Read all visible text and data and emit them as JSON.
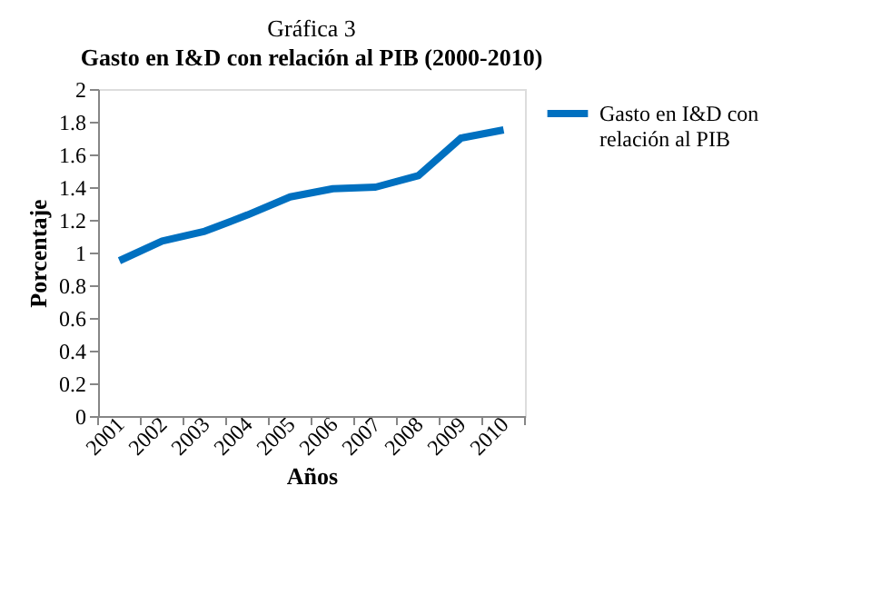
{
  "chart_data": {
    "type": "line",
    "title": "Gráfica 3",
    "subtitle": "Gasto en I&D con relación al PIB (2000-2010)",
    "xlabel": "Años",
    "ylabel": "Porcentaje",
    "categories": [
      "2001",
      "2002",
      "2003",
      "2004",
      "2005",
      "2006",
      "2007",
      "2008",
      "2009",
      "2010"
    ],
    "series": [
      {
        "name": "Gasto en I&D con relación al PIB",
        "color": "#0070c0",
        "values": [
          0.95,
          1.07,
          1.13,
          1.23,
          1.34,
          1.39,
          1.4,
          1.47,
          1.7,
          1.75
        ]
      }
    ],
    "ylim": [
      0,
      2
    ],
    "yticks": [
      0,
      0.2,
      0.4,
      0.6,
      0.8,
      1,
      1.2,
      1.4,
      1.6,
      1.8,
      2
    ],
    "grid": false,
    "legend": "right",
    "marker": "none",
    "line_style": "solid"
  }
}
